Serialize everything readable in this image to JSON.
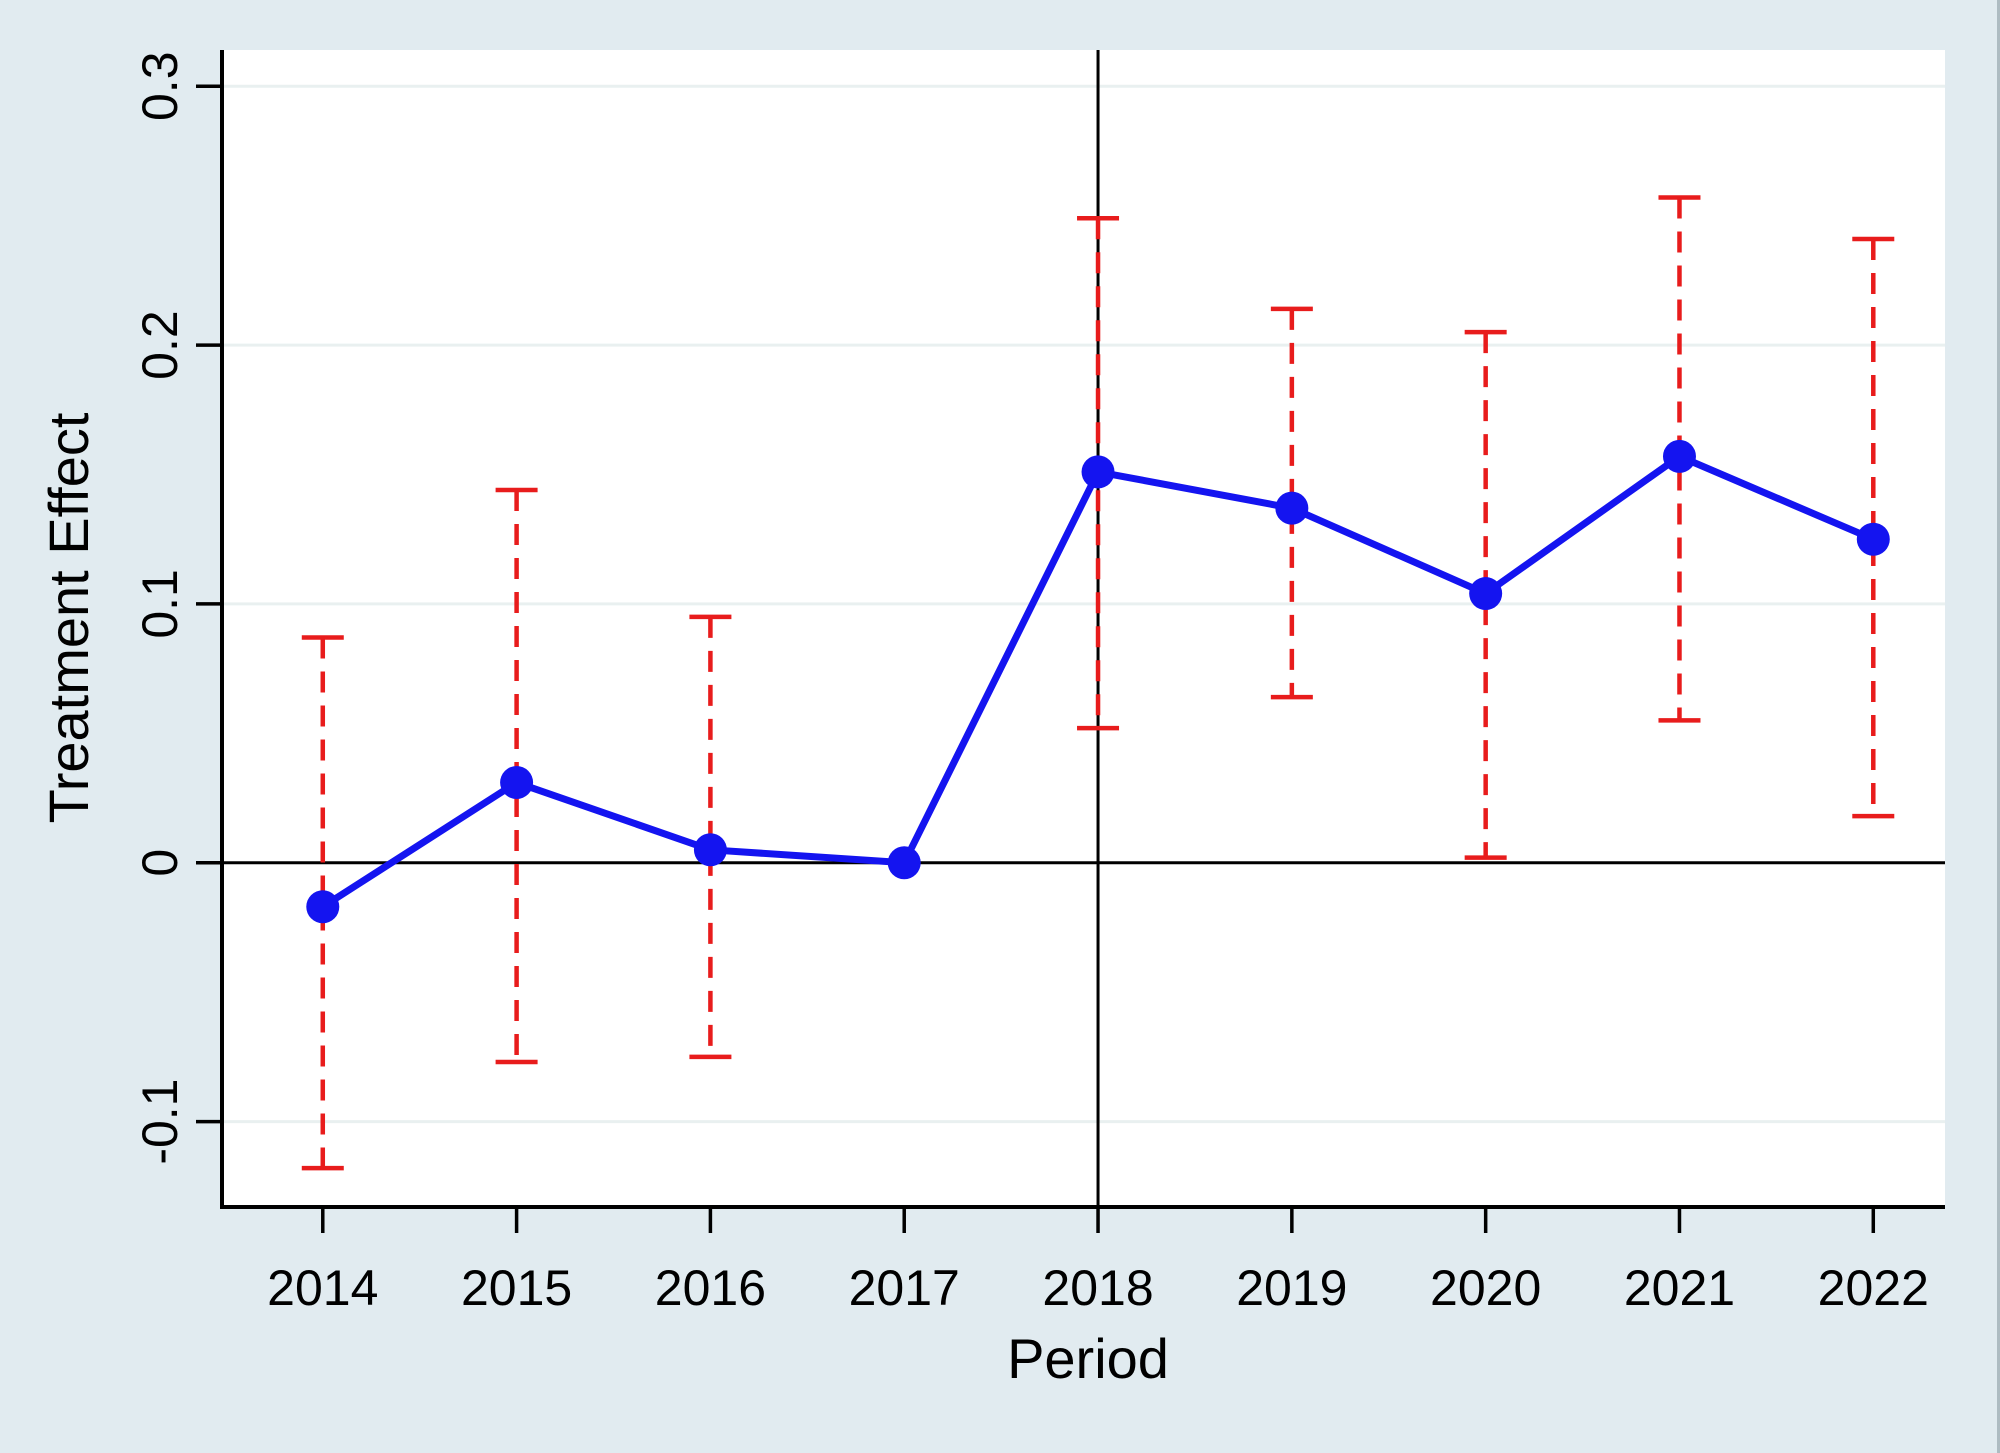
{
  "figure": {
    "kind": "stata-style event-study plot",
    "x_axis_title": "Period",
    "y_axis_title": "Treatment Effect"
  },
  "chart_data": {
    "type": "line",
    "subtype": "event-study with confidence intervals",
    "title": "",
    "xlabel": "Period",
    "ylabel": "Treatment Effect",
    "x": [
      2014,
      2015,
      2016,
      2017,
      2018,
      2019,
      2020,
      2021,
      2022
    ],
    "series": [
      {
        "name": "Treatment effect point estimate",
        "color": "#1414f0",
        "marker": "filled-circle",
        "values": [
          -0.017,
          0.031,
          0.005,
          0.0,
          0.151,
          0.137,
          0.104,
          0.157,
          0.125
        ]
      }
    ],
    "ci": {
      "name": "Confidence interval",
      "style": "dashed-with-caps",
      "color": "#e81c1c",
      "low": [
        -0.118,
        -0.077,
        -0.075,
        null,
        0.052,
        0.064,
        0.002,
        0.055,
        0.018
      ],
      "high": [
        0.087,
        0.144,
        0.095,
        null,
        0.249,
        0.214,
        0.205,
        0.257,
        0.241
      ]
    },
    "reference_period": 2017,
    "vline_x": 2018,
    "hline_y": 0,
    "xticks": {
      "values": [
        2014,
        2015,
        2016,
        2017,
        2018,
        2019,
        2020,
        2021,
        2022
      ],
      "labels": [
        "2014",
        "2015",
        "2016",
        "2017",
        "2018",
        "2019",
        "2020",
        "2021",
        "2022"
      ]
    },
    "yticks": {
      "values": [
        0.3,
        0.2,
        0.1,
        0,
        -0.1
      ],
      "labels": [
        "0.3",
        "0.2",
        "0.1",
        "0",
        "-0.1"
      ]
    },
    "xlim": [
      2013.48,
      2022.37
    ],
    "ylim": [
      -0.133,
      0.314
    ],
    "grid": {
      "show": true,
      "y_values": [
        0.3,
        0.2,
        0.1,
        -0.1
      ]
    },
    "legend": {
      "show": false
    },
    "colors": {
      "point_line": "#1414f0",
      "ci": "#e81c1c",
      "axis": "#000000",
      "zero_line": "#000000",
      "treatment_vline": "#000000",
      "gridline": "#e9f0f0",
      "plot_background": "#ffffff",
      "outer_background": "#e1ebf0"
    }
  }
}
